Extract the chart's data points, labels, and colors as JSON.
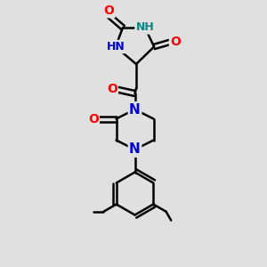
{
  "bg_color": "#e0e0e0",
  "atom_colors": {
    "N": "#0000cc",
    "O": "#ff0000",
    "NH_top": "#008888"
  },
  "bond_color": "#000000",
  "bond_width": 1.8,
  "font_size_atom": 9
}
